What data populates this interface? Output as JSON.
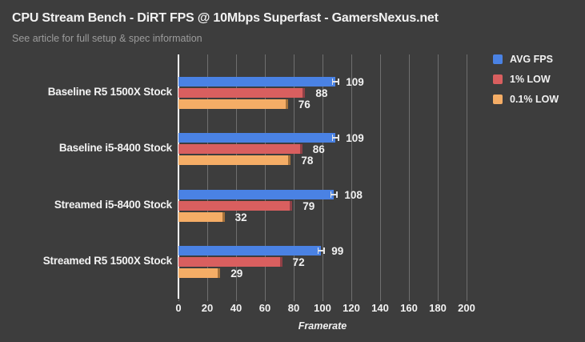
{
  "header": {
    "title": "CPU Stream Bench - DiRT FPS @ 10Mbps Superfast - GamersNexus.net",
    "subtitle": "See article for full setup & spec information"
  },
  "chart_data": {
    "type": "bar",
    "orientation": "horizontal",
    "title": "CPU Stream Bench - DiRT FPS @ 10Mbps Superfast - GamersNexus.net",
    "subtitle": "See article for full setup & spec information",
    "categories": [
      "Baseline R5 1500X Stock",
      "Baseline i5-8400 Stock",
      "Streamed i5-8400 Stock",
      "Streamed R5 1500X Stock"
    ],
    "series": [
      {
        "name": "AVG FPS",
        "color": "#4a82e4",
        "values": [
          109,
          109,
          108,
          99
        ],
        "error_whisker": true,
        "whisker_color": "#e4e4e4"
      },
      {
        "name": "1% LOW",
        "color": "#d95f5f",
        "values": [
          88,
          86,
          79,
          72
        ],
        "error_whisker": false,
        "cap_color": "#8f4046"
      },
      {
        "name": "0.1% LOW",
        "color": "#f5ad66",
        "values": [
          76,
          78,
          32,
          29
        ],
        "error_whisker": false,
        "cap_color": "#a4713b"
      }
    ],
    "xlabel": "Framerate",
    "xlim": [
      0,
      200
    ],
    "xticks": [
      0,
      20,
      40,
      60,
      80,
      100,
      120,
      140,
      160,
      180,
      200
    ],
    "grid": true,
    "legend_position": "right"
  },
  "colors": {
    "background": "#3d3d3d",
    "gridline": "#6f6f6f",
    "zero_axis": "#ffffff",
    "text_primary": "#f2f2f2",
    "text_muted": "#9c9c9c"
  }
}
